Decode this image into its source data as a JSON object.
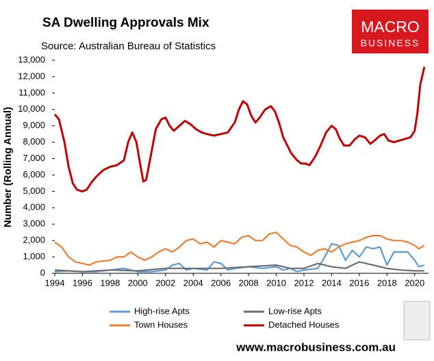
{
  "chart_data": {
    "type": "line",
    "title": "SA Dwelling Approvals Mix",
    "subtitle": "Source: Australian Bureau of Statistics",
    "y_label": "Number (Rolling Annual)",
    "xlim": [
      1994,
      2021
    ],
    "xticks": [
      1994,
      1996,
      1998,
      2000,
      2002,
      2004,
      2006,
      2008,
      2010,
      2012,
      2014,
      2016,
      2018,
      2020
    ],
    "ylim": [
      0,
      13000
    ],
    "yticks": [
      0,
      {
        "value": 1000,
        "label": "1,000"
      },
      {
        "value": 2000,
        "label": "2,000"
      },
      {
        "value": 3000,
        "label": "3,000"
      },
      {
        "value": 4000,
        "label": "4,000"
      },
      {
        "value": 5000,
        "label": "5,000"
      },
      {
        "value": 6000,
        "label": "6,000"
      },
      {
        "value": 7000,
        "label": "7,000"
      },
      {
        "value": 8000,
        "label": "8,000"
      },
      {
        "value": 9000,
        "label": "9,000"
      },
      {
        "value": 10000,
        "label": "10,000"
      },
      {
        "value": 11000,
        "label": "11,000"
      },
      {
        "value": 12000,
        "label": "12,000"
      },
      {
        "value": 13000,
        "label": "13,000"
      }
    ],
    "series": [
      {
        "name": "High-rise Apts",
        "color": "#5b9bd5",
        "x": [
          1994,
          1995,
          1996,
          1997,
          1998,
          1999,
          2000,
          2001,
          2002,
          2002.5,
          2003,
          2003.5,
          2004,
          2005,
          2005.5,
          2006,
          2006.5,
          2007,
          2008,
          2009,
          2010,
          2010.5,
          2011,
          2011.5,
          2012,
          2013,
          2013.5,
          2014,
          2014.5,
          2015,
          2015.5,
          2016,
          2016.5,
          2017,
          2017.5,
          2018,
          2018.5,
          2019,
          2019.5,
          2020,
          2020.3,
          2020.7
        ],
        "values": [
          100,
          150,
          100,
          100,
          200,
          300,
          100,
          100,
          200,
          500,
          600,
          200,
          300,
          200,
          700,
          600,
          200,
          300,
          400,
          300,
          400,
          200,
          300,
          100,
          200,
          300,
          1000,
          1800,
          1700,
          800,
          1400,
          1000,
          1600,
          1500,
          1600,
          500,
          1300,
          1300,
          1300,
          800,
          400,
          500
        ]
      },
      {
        "name": "Low-rise Apts",
        "color": "#6d6d6d",
        "x": [
          1994,
          1996,
          1998,
          2000,
          2002,
          2004,
          2006,
          2008,
          2010,
          2011,
          2012,
          2013,
          2014,
          2015,
          2016,
          2017,
          2018,
          2019,
          2020,
          2020.7
        ],
        "values": [
          200,
          100,
          200,
          150,
          300,
          300,
          300,
          400,
          500,
          300,
          300,
          600,
          400,
          300,
          700,
          500,
          300,
          200,
          150,
          150
        ]
      },
      {
        "name": "Town Houses",
        "color": "#ed7d31",
        "x": [
          1994,
          1994.5,
          1995,
          1995.5,
          1996,
          1996.5,
          1997,
          1998,
          1998.5,
          1999,
          1999.5,
          2000,
          2000.5,
          2001,
          2001.5,
          2002,
          2002.5,
          2003,
          2003.5,
          2004,
          2004.5,
          2005,
          2005.5,
          2006,
          2006.5,
          2007,
          2007.5,
          2008,
          2008.5,
          2009,
          2009.5,
          2010,
          2010.5,
          2011,
          2011.5,
          2012,
          2012.5,
          2013,
          2013.5,
          2014,
          2014.5,
          2015,
          2015.5,
          2016,
          2016.5,
          2017,
          2017.5,
          2018,
          2018.5,
          2019,
          2019.5,
          2020,
          2020.3,
          2020.7
        ],
        "values": [
          1900,
          1600,
          1000,
          700,
          600,
          500,
          700,
          800,
          1000,
          1000,
          1300,
          1000,
          800,
          1000,
          1300,
          1500,
          1300,
          1600,
          2000,
          2100,
          1800,
          1900,
          1600,
          2000,
          1900,
          1800,
          2200,
          2300,
          2000,
          2000,
          2400,
          2500,
          2100,
          1700,
          1600,
          1300,
          1100,
          1400,
          1500,
          1300,
          1600,
          1800,
          1900,
          2000,
          2200,
          2300,
          2300,
          2100,
          2000,
          2000,
          1900,
          1700,
          1500,
          1700
        ]
      },
      {
        "name": "Detached Houses",
        "color": "#c00000",
        "x": [
          1994,
          1994.3,
          1994.7,
          1995,
          1995.3,
          1995.6,
          1996,
          1996.3,
          1996.7,
          1997,
          1997.5,
          1998,
          1998.5,
          1999,
          1999.3,
          1999.6,
          1999.9,
          2000.2,
          2000.4,
          2000.6,
          2000.9,
          2001.3,
          2001.7,
          2002,
          2002.3,
          2002.6,
          2003,
          2003.4,
          2003.8,
          2004.2,
          2004.6,
          2005,
          2005.5,
          2006,
          2006.5,
          2007,
          2007.3,
          2007.6,
          2007.9,
          2008.2,
          2008.5,
          2008.8,
          2009.2,
          2009.6,
          2009.9,
          2010.2,
          2010.5,
          2010.8,
          2011.1,
          2011.5,
          2011.8,
          2012.1,
          2012.4,
          2012.8,
          2013.2,
          2013.6,
          2014,
          2014.3,
          2014.6,
          2014.9,
          2015.3,
          2015.7,
          2016,
          2016.4,
          2016.8,
          2017.1,
          2017.5,
          2017.8,
          2018.1,
          2018.5,
          2018.9,
          2019.3,
          2019.7,
          2020,
          2020.2,
          2020.4,
          2020.7
        ],
        "values": [
          9700,
          9400,
          8000,
          6500,
          5500,
          5100,
          5000,
          5100,
          5600,
          5900,
          6300,
          6500,
          6600,
          6900,
          8000,
          8600,
          8000,
          6500,
          5600,
          5700,
          7000,
          8800,
          9400,
          9500,
          9000,
          8700,
          9000,
          9300,
          9100,
          8800,
          8600,
          8500,
          8400,
          8500,
          8600,
          9200,
          10000,
          10500,
          10300,
          9600,
          9200,
          9500,
          10000,
          10200,
          9900,
          9200,
          8300,
          7800,
          7300,
          6900,
          6700,
          6700,
          6600,
          7100,
          7800,
          8600,
          9000,
          8800,
          8200,
          7800,
          7800,
          8200,
          8400,
          8300,
          7900,
          8100,
          8400,
          8500,
          8100,
          8000,
          8100,
          8200,
          8300,
          8700,
          9800,
          11500,
          12600
        ]
      }
    ]
  },
  "logo": [
    "MACRO",
    "BUSINESS"
  ],
  "footer": "www.macrobusiness.com.au"
}
